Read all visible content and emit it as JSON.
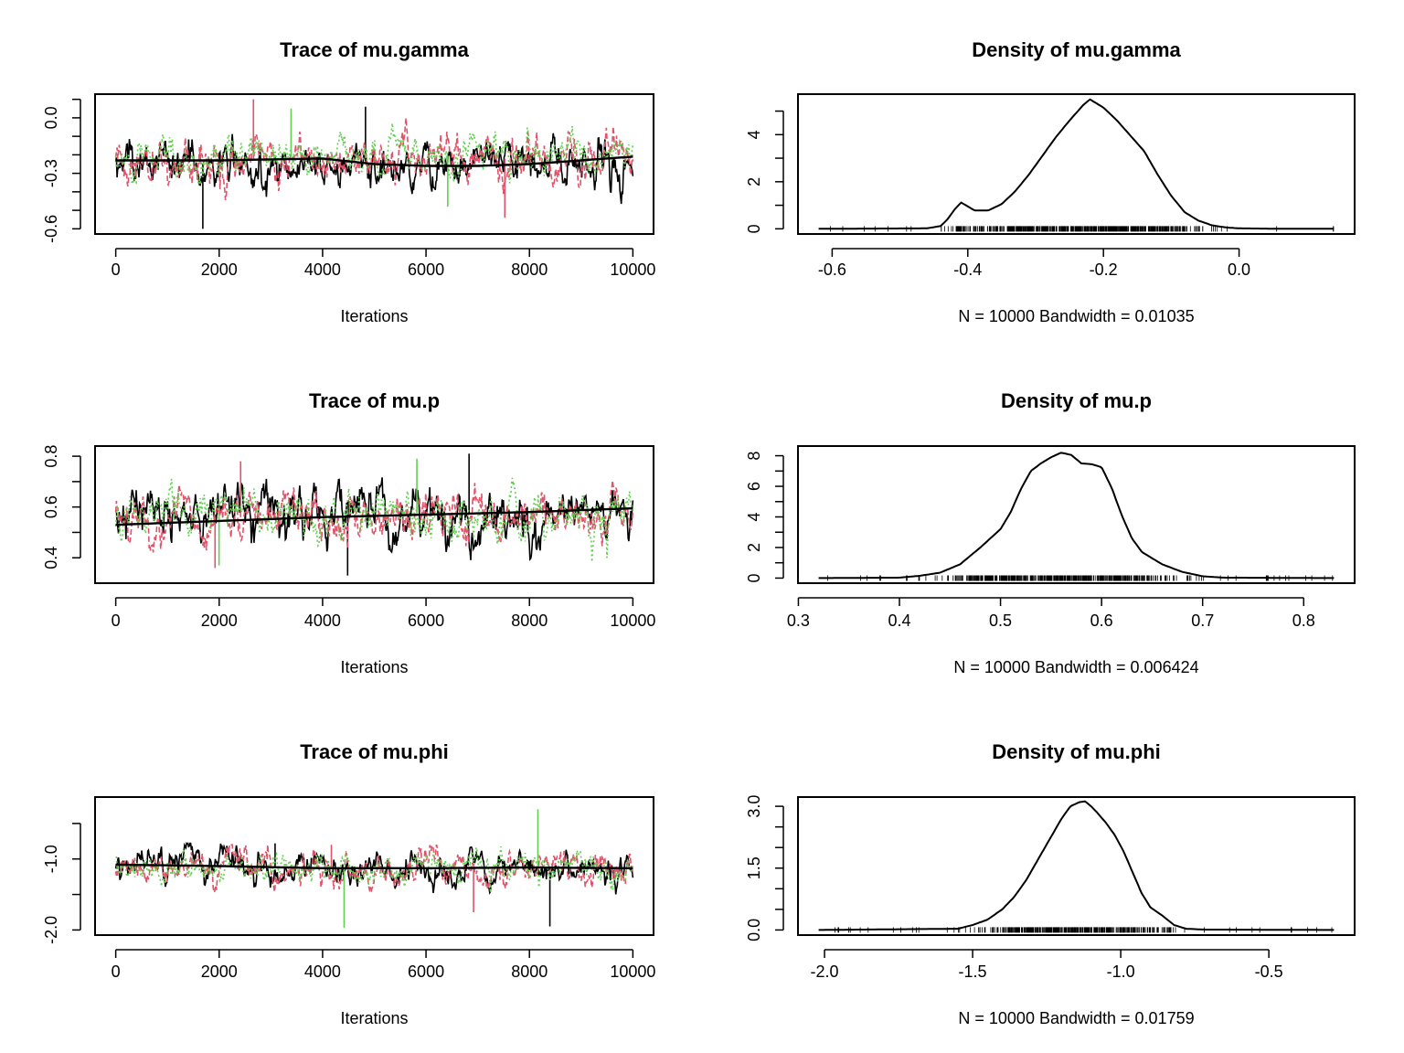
{
  "chart_data": [
    {
      "type": "line",
      "title": "Trace of mu.gamma",
      "xlabel": "Iterations",
      "xlim": [
        0,
        10000
      ],
      "ylim": [
        -0.6,
        0.1
      ],
      "xticks": [
        "0",
        "2000",
        "4000",
        "6000",
        "8000",
        "10000"
      ],
      "yticks": [
        "-0.6",
        "-0.3",
        "0.0"
      ],
      "ytick_values": [
        -0.6,
        -0.3,
        0.0
      ],
      "yminor_ticks": [
        -0.6,
        -0.5,
        -0.4,
        -0.3,
        -0.2,
        -0.1,
        0.0,
        0.1
      ],
      "grid": false,
      "series": [
        {
          "chain": 1,
          "color": "#000000",
          "mean": -0.25,
          "sd": 0.07,
          "min": -0.6,
          "max": 0.06
        },
        {
          "chain": 2,
          "color": "#DF536B",
          "mean": -0.22,
          "sd": 0.07,
          "min": -0.54,
          "max": 0.1
        },
        {
          "chain": 3,
          "color": "#61D04F",
          "mean": -0.21,
          "sd": 0.06,
          "min": -0.48,
          "max": 0.05
        }
      ],
      "smooth": {
        "color": "#000000",
        "x": [
          0,
          2000,
          4000,
          5000,
          6000,
          7000,
          8000,
          10000
        ],
        "y": [
          -0.23,
          -0.23,
          -0.22,
          -0.25,
          -0.26,
          -0.26,
          -0.25,
          -0.21
        ]
      }
    },
    {
      "type": "line",
      "title": "Density of mu.gamma",
      "xlabel": "N = 10000   Bandwidth = 0.01035",
      "xlim": [
        -0.62,
        0.14
      ],
      "ylim": [
        0,
        5.5
      ],
      "xticks": [
        "-0.6",
        "-0.4",
        "-0.2",
        "0.0"
      ],
      "xtick_values": [
        -0.6,
        -0.4,
        -0.2,
        0.0
      ],
      "yticks": [
        "0",
        "2",
        "4"
      ],
      "ytick_values": [
        0,
        2,
        4
      ],
      "yminor_ticks": [
        0,
        1,
        2,
        3,
        4,
        5
      ],
      "grid": false,
      "density": {
        "x": [
          -0.62,
          -0.46,
          -0.44,
          -0.43,
          -0.42,
          -0.41,
          -0.4,
          -0.39,
          -0.37,
          -0.35,
          -0.33,
          -0.31,
          -0.29,
          -0.27,
          -0.25,
          -0.23,
          -0.22,
          -0.2,
          -0.18,
          -0.16,
          -0.14,
          -0.12,
          -0.1,
          -0.08,
          -0.06,
          -0.04,
          -0.02,
          0.0,
          0.05,
          0.14
        ],
        "y": [
          0,
          0.02,
          0.12,
          0.4,
          0.8,
          1.12,
          0.95,
          0.78,
          0.78,
          1.05,
          1.6,
          2.3,
          3.1,
          3.9,
          4.6,
          5.25,
          5.5,
          5.15,
          4.6,
          3.95,
          3.3,
          2.3,
          1.4,
          0.7,
          0.35,
          0.15,
          0.06,
          0.02,
          0.005,
          0
        ]
      },
      "rug_range": [
        -0.62,
        0.14
      ]
    },
    {
      "type": "line",
      "title": "Trace of mu.p",
      "xlabel": "Iterations",
      "xlim": [
        0,
        10000
      ],
      "ylim": [
        0.32,
        0.82
      ],
      "xticks": [
        "0",
        "2000",
        "4000",
        "6000",
        "8000",
        "10000"
      ],
      "yticks": [
        "0.4",
        "0.6",
        "0.8"
      ],
      "ytick_values": [
        0.4,
        0.6,
        0.8
      ],
      "yminor_ticks": [
        0.4,
        0.5,
        0.6,
        0.7,
        0.8
      ],
      "grid": false,
      "series": [
        {
          "chain": 1,
          "color": "#000000",
          "mean": 0.57,
          "sd": 0.06,
          "min": 0.33,
          "max": 0.81
        },
        {
          "chain": 2,
          "color": "#DF536B",
          "mean": 0.56,
          "sd": 0.05,
          "min": 0.36,
          "max": 0.78
        },
        {
          "chain": 3,
          "color": "#61D04F",
          "mean": 0.57,
          "sd": 0.05,
          "min": 0.37,
          "max": 0.79
        }
      ],
      "smooth": {
        "color": "#000000",
        "x": [
          0,
          2000,
          4000,
          6000,
          8000,
          10000
        ],
        "y": [
          0.53,
          0.545,
          0.56,
          0.57,
          0.58,
          0.595
        ]
      }
    },
    {
      "type": "line",
      "title": "Density of mu.p",
      "xlabel": "N = 10000   Bandwidth = 0.006424",
      "xlim": [
        0.32,
        0.83
      ],
      "ylim": [
        0,
        8.3
      ],
      "xticks": [
        "0.3",
        "0.4",
        "0.5",
        "0.6",
        "0.7",
        "0.8"
      ],
      "xtick_values": [
        0.3,
        0.4,
        0.5,
        0.6,
        0.7,
        0.8
      ],
      "yticks": [
        "0",
        "2",
        "4",
        "6",
        "8"
      ],
      "ytick_values": [
        0,
        2,
        4,
        6,
        8
      ],
      "yminor_ticks": [
        0,
        1,
        2,
        3,
        4,
        5,
        6,
        7,
        8
      ],
      "grid": false,
      "density": {
        "x": [
          0.32,
          0.4,
          0.42,
          0.44,
          0.46,
          0.48,
          0.5,
          0.51,
          0.52,
          0.53,
          0.54,
          0.55,
          0.56,
          0.57,
          0.58,
          0.59,
          0.6,
          0.61,
          0.62,
          0.63,
          0.64,
          0.66,
          0.68,
          0.7,
          0.72,
          0.83
        ],
        "y": [
          0,
          0.03,
          0.15,
          0.35,
          0.9,
          2.0,
          3.2,
          4.3,
          5.8,
          7.0,
          7.5,
          7.9,
          8.2,
          8.05,
          7.5,
          7.45,
          7.25,
          5.9,
          4.1,
          2.6,
          1.7,
          0.9,
          0.4,
          0.12,
          0.03,
          0
        ]
      },
      "rug_range": [
        0.32,
        0.83
      ]
    },
    {
      "type": "line",
      "title": "Trace of mu.phi",
      "xlabel": "Iterations",
      "xlim": [
        0,
        10000
      ],
      "ylim": [
        -2.0,
        -0.2
      ],
      "xticks": [
        "0",
        "2000",
        "4000",
        "6000",
        "8000",
        "10000"
      ],
      "yticks": [
        "-2.0",
        "-1.0"
      ],
      "ytick_values": [
        -2.0,
        -1.0
      ],
      "yminor_ticks": [
        -2.0,
        -1.5,
        -1.0,
        -0.5
      ],
      "grid": false,
      "series": [
        {
          "chain": 1,
          "color": "#000000",
          "mean": -1.12,
          "sd": 0.13,
          "min": -1.95,
          "max": -0.78
        },
        {
          "chain": 2,
          "color": "#DF536B",
          "mean": -1.13,
          "sd": 0.13,
          "min": -1.75,
          "max": -0.8
        },
        {
          "chain": 3,
          "color": "#61D04F",
          "mean": -1.12,
          "sd": 0.12,
          "min": -1.97,
          "max": -0.3
        }
      ],
      "smooth": {
        "color": "#000000",
        "x": [
          0,
          2000,
          4000,
          6000,
          8000,
          10000
        ],
        "y": [
          -1.08,
          -1.1,
          -1.13,
          -1.13,
          -1.12,
          -1.13
        ]
      }
    },
    {
      "type": "line",
      "title": "Density of mu.phi",
      "xlabel": "N = 10000   Bandwidth = 0.01759",
      "xlim": [
        -2.02,
        -0.28
      ],
      "ylim": [
        0,
        3.1
      ],
      "xticks": [
        "-2.0",
        "-1.5",
        "-1.0",
        "-0.5"
      ],
      "xtick_values": [
        -2.0,
        -1.5,
        -1.0,
        -0.5
      ],
      "yticks": [
        "0.0",
        "1.5",
        "3.0"
      ],
      "ytick_values": [
        0,
        1.5,
        3.0
      ],
      "yminor_ticks": [
        0,
        0.5,
        1.0,
        1.5,
        2.0,
        2.5,
        3.0
      ],
      "grid": false,
      "density": {
        "x": [
          -2.02,
          -1.55,
          -1.5,
          -1.45,
          -1.4,
          -1.36,
          -1.32,
          -1.28,
          -1.24,
          -1.2,
          -1.17,
          -1.14,
          -1.12,
          -1.1,
          -1.08,
          -1.05,
          -1.02,
          -0.99,
          -0.96,
          -0.93,
          -0.9,
          -0.86,
          -0.82,
          -0.78,
          -0.72,
          -0.28
        ],
        "y": [
          0,
          0.03,
          0.12,
          0.25,
          0.5,
          0.8,
          1.2,
          1.7,
          2.2,
          2.7,
          3.0,
          3.1,
          3.12,
          3.0,
          2.85,
          2.6,
          2.3,
          1.9,
          1.4,
          0.9,
          0.55,
          0.35,
          0.12,
          0.03,
          0.01,
          0
        ]
      },
      "rug_range": [
        -2.02,
        -0.28
      ]
    }
  ]
}
